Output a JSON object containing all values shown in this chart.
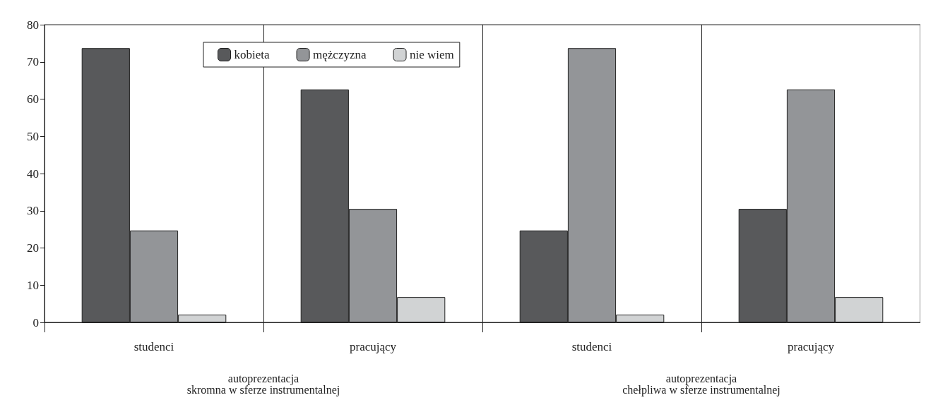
{
  "chart_data": {
    "type": "bar",
    "categories": [
      "studenci",
      "pracujący",
      "studenci",
      "pracujący"
    ],
    "series": [
      {
        "name": "kobieta",
        "color": "#58595b",
        "values": [
          73.7,
          62.6,
          24.7,
          30.5
        ]
      },
      {
        "name": "mężczyzna",
        "color": "#939598",
        "values": [
          24.7,
          30.5,
          73.7,
          62.6
        ]
      },
      {
        "name": "nie wiem",
        "color": "#d1d3d4",
        "values": [
          2.1,
          6.8,
          2.1,
          6.8
        ]
      }
    ],
    "ylim": [
      0,
      80
    ],
    "yticks": [
      0,
      10,
      20,
      30,
      40,
      50,
      60,
      70,
      80
    ],
    "grid": "x",
    "legend": "top",
    "annotations": [
      "autoprezentacja\nskromna w sferze instrumentalnej",
      "autoprezentacja\nchełpliwa w sferze instrumentalnej"
    ]
  }
}
